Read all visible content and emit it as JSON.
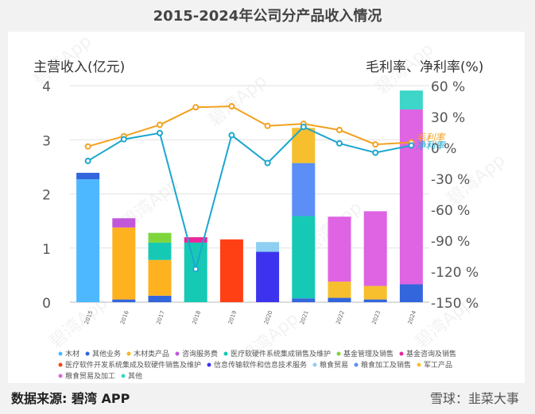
{
  "page": {
    "title": "2015-2024年公司分产品收入情况",
    "source": "数据来源: 碧湾 APP",
    "brand": "雪球：韭菜大事"
  },
  "chart_data": {
    "type": "bar",
    "title": "2015-2024年公司分产品收入情况",
    "ylabel_left": "主营收入(亿元)",
    "ylabel_right": "毛利率、净利率(%)",
    "ylim": [
      0,
      4
    ],
    "y2lim": [
      -150,
      60
    ],
    "yticks": [
      "0",
      "1",
      "2",
      "3",
      "4"
    ],
    "y2ticks": [
      "60 %",
      "30 %",
      "0 %",
      "-30 %",
      "-60 %",
      "-90 %",
      "-120 %",
      "-150 %"
    ],
    "categories": [
      "2015",
      "2016",
      "2017",
      "2018",
      "2019",
      "2020",
      "2021",
      "2022",
      "2023",
      "2024"
    ],
    "series": [
      {
        "name": "木材",
        "color": "#4db8ff",
        "values": [
          2.27,
          0,
          0,
          0,
          0,
          0,
          0,
          0,
          0,
          0
        ]
      },
      {
        "name": "其他业务",
        "color": "#3366dd",
        "values": [
          0.12,
          0.05,
          0.12,
          0,
          0,
          0,
          0.07,
          0.08,
          0.05,
          0.33
        ]
      },
      {
        "name": "木材类产品",
        "color": "#ffb21f",
        "values": [
          0,
          1.33,
          0.66,
          0,
          0,
          0,
          0,
          0,
          0,
          0
        ]
      },
      {
        "name": "咨询服务费",
        "color": "#c158d8",
        "values": [
          0,
          0.17,
          0,
          0,
          0,
          0,
          0,
          0,
          0,
          0
        ]
      },
      {
        "name": "医疗软硬件系统集成销售及维护",
        "color": "#16c9b5",
        "values": [
          0,
          0,
          0.32,
          1.1,
          0,
          0,
          1.52,
          0,
          0,
          0
        ]
      },
      {
        "name": "基金管理及销售",
        "color": "#7ed63c",
        "values": [
          0,
          0,
          0.18,
          0,
          0,
          0,
          0,
          0,
          0,
          0
        ]
      },
      {
        "name": "基金咨询及销售",
        "color": "#e8289a",
        "values": [
          0,
          0,
          0,
          0.1,
          0,
          0,
          0,
          0,
          0,
          0
        ]
      },
      {
        "name": "医疗软件开发系统集成及软硬件销售及维护",
        "color": "#ff4015",
        "values": [
          0,
          0,
          0,
          0,
          1.16,
          0,
          0,
          0,
          0,
          0
        ]
      },
      {
        "name": "信息传输软件和信息技术服务",
        "color": "#3d33ee",
        "values": [
          0,
          0,
          0,
          0,
          0,
          0.93,
          0,
          0,
          0,
          0
        ]
      },
      {
        "name": "粮食贸易",
        "color": "#8ecff2",
        "values": [
          0,
          0,
          0,
          0,
          0,
          0.18,
          0,
          0,
          0,
          0
        ]
      },
      {
        "name": "粮食加工及销售",
        "color": "#5b8ef6",
        "values": [
          0,
          0,
          0,
          0,
          0,
          0,
          0.98,
          0,
          0,
          0
        ]
      },
      {
        "name": "军工产品",
        "color": "#f7bf2d",
        "values": [
          0,
          0,
          0,
          0,
          0,
          0,
          0.65,
          0.3,
          0.25,
          0
        ]
      },
      {
        "name": "粮食贸易及加工",
        "color": "#de64e3",
        "values": [
          0,
          0,
          0,
          0,
          0,
          0,
          0,
          1.2,
          1.38,
          3.23
        ]
      },
      {
        "name": "其他",
        "color": "#3dd6c9",
        "values": [
          0,
          0,
          0,
          0,
          0,
          0,
          0,
          0,
          0,
          0.35
        ]
      }
    ],
    "lines": [
      {
        "name": "毛利率",
        "color": "#f2a11f",
        "values": [
          1,
          11,
          22,
          39,
          40,
          21,
          23,
          17,
          3,
          5
        ]
      },
      {
        "name": "净利率",
        "color": "#1ba7cf",
        "values": [
          -13,
          8,
          14,
          -118,
          12,
          -15,
          20,
          4,
          -5,
          2
        ]
      }
    ],
    "line_labels": [
      "毛利率",
      "净利率"
    ],
    "watermark": "碧湾App"
  }
}
